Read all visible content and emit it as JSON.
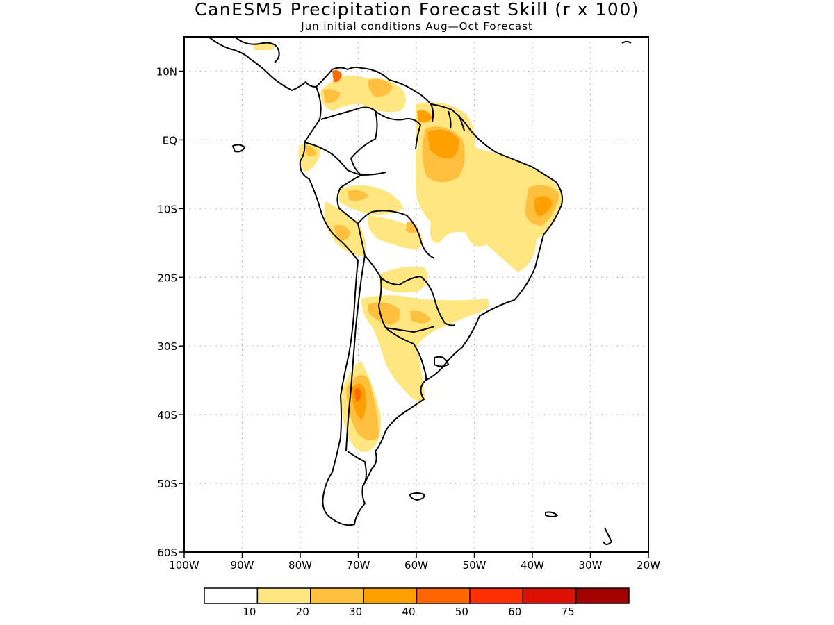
{
  "title": "CanESM5 Precipitation Forecast Skill (r x 100)",
  "subtitle": "Jun initial conditions  Aug—Oct Forecast",
  "map": {
    "region": "South America",
    "projection": "lat-lon",
    "lon_range": [
      -100,
      -20
    ],
    "lat_range": [
      -60,
      15
    ],
    "grid": "dotted",
    "lat_ticks": [
      {
        "value": 10,
        "label": "10N"
      },
      {
        "value": 0,
        "label": "EQ"
      },
      {
        "value": -10,
        "label": "10S"
      },
      {
        "value": -20,
        "label": "20S"
      },
      {
        "value": -30,
        "label": "30S"
      },
      {
        "value": -40,
        "label": "40S"
      },
      {
        "value": -50,
        "label": "50S"
      },
      {
        "value": -60,
        "label": "60S"
      }
    ],
    "lon_ticks": [
      {
        "value": -100,
        "label": "100W"
      },
      {
        "value": -90,
        "label": "90W"
      },
      {
        "value": -80,
        "label": "80W"
      },
      {
        "value": -70,
        "label": "70W"
      },
      {
        "value": -60,
        "label": "60W"
      },
      {
        "value": -50,
        "label": "50W"
      },
      {
        "value": -40,
        "label": "40W"
      },
      {
        "value": -30,
        "label": "30W"
      },
      {
        "value": -20,
        "label": "20W"
      }
    ]
  },
  "colorbar": {
    "colors": [
      "#ffffff",
      "#ffe680",
      "#ffc040",
      "#ffa000",
      "#ff6800",
      "#ff3000",
      "#dd1000",
      "#a00000"
    ],
    "labels": [
      "10",
      "20",
      "30",
      "40",
      "50",
      "60",
      "75"
    ]
  }
}
